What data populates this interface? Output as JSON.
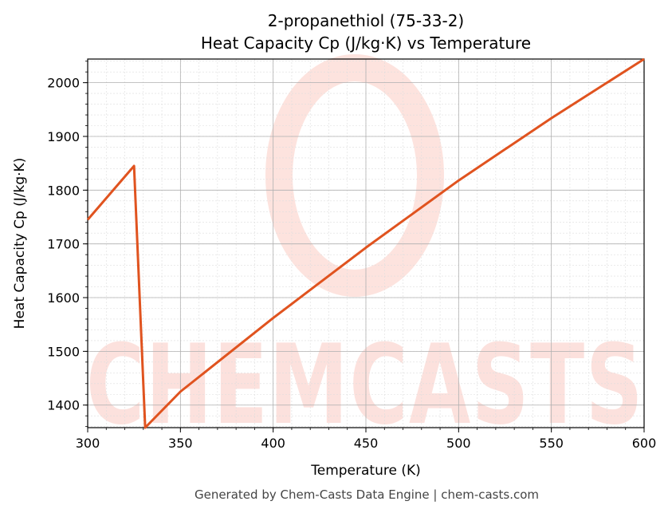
{
  "chart_data": {
    "type": "line",
    "title": "2-propanethiol (75-33-2)",
    "subtitle": "Heat Capacity Cp (J/kg·K) vs Temperature",
    "xlabel": "Temperature (K)",
    "ylabel": "Heat Capacity Cp (J/kg·K)",
    "xlim": [
      300,
      600
    ],
    "ylim": [
      1358,
      2044
    ],
    "xticks": [
      300,
      350,
      400,
      450,
      500,
      550,
      600
    ],
    "yticks": [
      1400,
      1500,
      1600,
      1700,
      1800,
      1900,
      2000
    ],
    "grid": true,
    "color": "#e0531f",
    "series": [
      {
        "x": [
          300,
          325,
          331,
          350,
          400,
          450,
          500,
          550,
          600
        ],
        "values": [
          1745,
          1845,
          1358,
          1425,
          1562,
          1693,
          1818,
          1934,
          2044
        ]
      }
    ],
    "footer": "Generated by Chem-Casts Data Engine | chem-casts.com",
    "watermark": "CHEMCASTS"
  }
}
